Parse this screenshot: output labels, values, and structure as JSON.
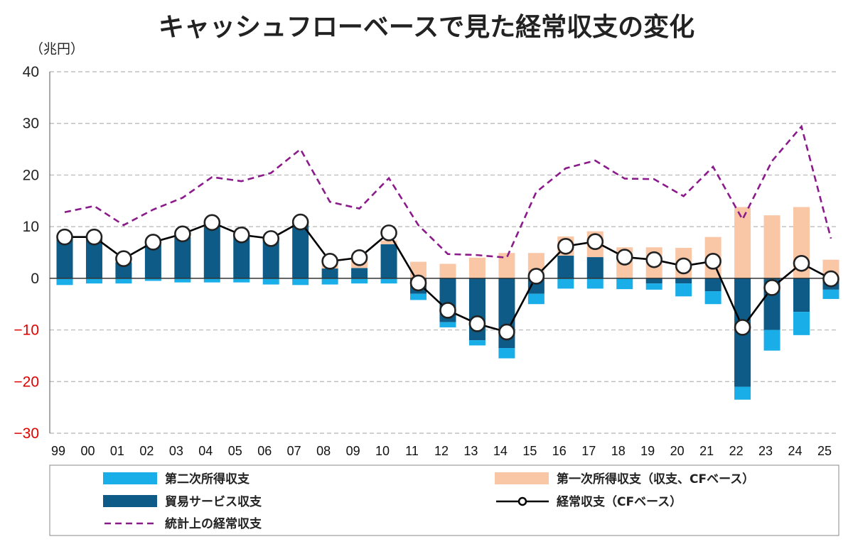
{
  "chart_data": {
    "type": "bar",
    "title": "キャッシュフローベースで見た経常収支の変化",
    "unit": "（兆円）",
    "ylim": [
      -30,
      40
    ],
    "yticks": [
      40,
      30,
      20,
      10,
      0,
      -10,
      -20,
      -30
    ],
    "categories": [
      "99",
      "00",
      "01",
      "02",
      "03",
      "04",
      "05",
      "06",
      "07",
      "08",
      "09",
      "10",
      "11",
      "12",
      "13",
      "14",
      "15",
      "16",
      "17",
      "18",
      "19",
      "20",
      "21",
      "22",
      "23",
      "24",
      "25"
    ],
    "series": [
      {
        "name": "第二次所得収支",
        "type": "stacked-bar",
        "color": "#1aaee8",
        "values": [
          -1.3,
          -1.0,
          -1.0,
          -0.5,
          -0.8,
          -0.8,
          -0.8,
          -1.2,
          -1.3,
          -1.2,
          -1.0,
          -1.0,
          -1.2,
          -1.0,
          -1.0,
          -2.0,
          -2.0,
          -2.0,
          -2.0,
          -2.0,
          -1.2,
          -2.5,
          -2.5,
          -2.5,
          -4.0,
          -4.5,
          -1.8
        ]
      },
      {
        "name": "貿易サービス収支",
        "type": "stacked-bar",
        "color": "#0d5b86",
        "values": [
          7.7,
          7.8,
          3.1,
          6.5,
          8.0,
          10.5,
          8.4,
          7.6,
          10.5,
          1.9,
          2.0,
          6.6,
          -3.0,
          -8.5,
          -12.0,
          -13.5,
          -3.0,
          4.4,
          4.1,
          -0.1,
          -1.0,
          -1.0,
          -2.5,
          -21.0,
          -10.0,
          -6.5,
          -2.2
        ]
      },
      {
        "name": "第一次所得収支（収支、CFベース）",
        "type": "stacked-bar",
        "color": "#f9c6a6",
        "values": [
          0.3,
          0.3,
          0.9,
          0.6,
          0.8,
          0.6,
          0.1,
          0.4,
          0.8,
          1.4,
          2.3,
          0.7,
          3.2,
          2.8,
          4.0,
          4.9,
          4.9,
          3.7,
          5.0,
          6.0,
          6.0,
          5.9,
          8.0,
          13.8,
          12.2,
          13.8,
          3.6
        ]
      },
      {
        "name": "経常収支（CFベース）",
        "type": "line-marker",
        "color": "#000000",
        "values": [
          8.0,
          8.0,
          3.8,
          7.0,
          8.6,
          10.8,
          8.4,
          7.7,
          10.9,
          3.3,
          4.0,
          8.8,
          -0.9,
          -6.2,
          -8.8,
          -10.4,
          0.4,
          6.2,
          7.1,
          4.1,
          3.6,
          2.4,
          3.3,
          -9.5,
          -1.8,
          2.9,
          -0.1
        ]
      },
      {
        "name": "統計上の経常収支",
        "type": "dashed-line",
        "color": "#8b1a8b",
        "values": [
          12.8,
          14.0,
          10.3,
          13.3,
          15.6,
          19.6,
          18.8,
          20.4,
          25.0,
          14.8,
          13.5,
          19.4,
          10.3,
          4.7,
          4.5,
          4.0,
          16.7,
          21.3,
          22.8,
          19.3,
          19.2,
          15.9,
          21.6,
          11.4,
          22.7,
          29.4,
          7.7
        ]
      }
    ],
    "legend": [
      {
        "label": "第二次所得収支",
        "kind": "box",
        "color": "#1aaee8"
      },
      {
        "label": "第一次所得収支（収支、CFベース）",
        "kind": "box",
        "color": "#f9c6a6"
      },
      {
        "label": "貿易サービス収支",
        "kind": "box",
        "color": "#0d5b86"
      },
      {
        "label": "経常収支（CFベース）",
        "kind": "line-marker",
        "color": "#000000"
      },
      {
        "label": "統計上の経常収支",
        "kind": "dashed",
        "color": "#8b1a8b"
      }
    ],
    "negative_tick_color": "#e00000",
    "positive_tick_color": "#222222"
  }
}
